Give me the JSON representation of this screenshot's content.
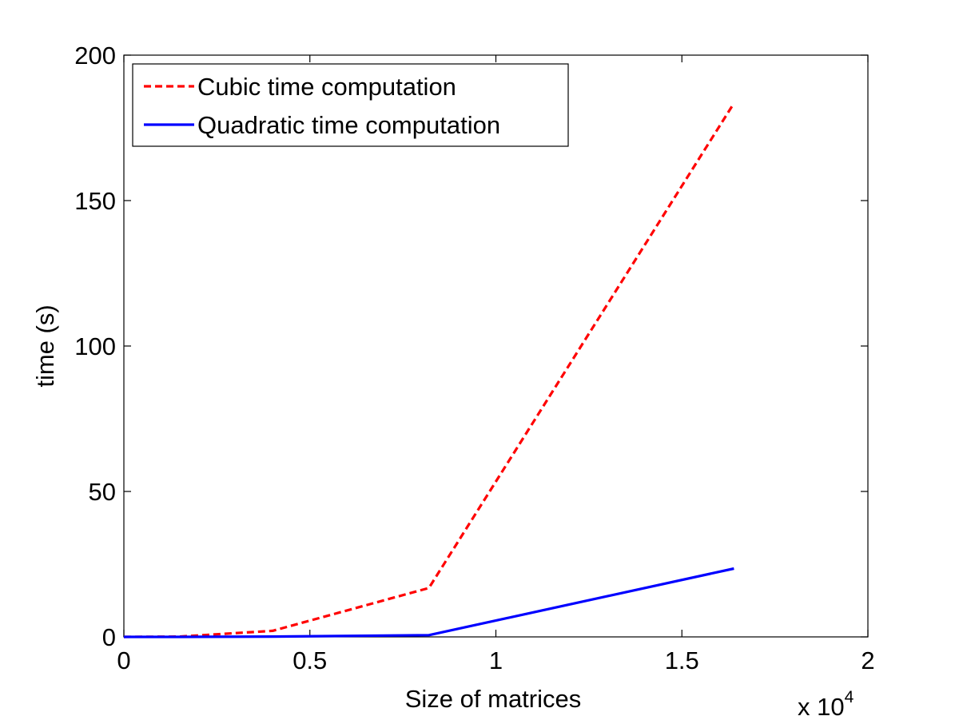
{
  "chart_data": {
    "type": "line",
    "title": "",
    "xlabel": "Size of matrices",
    "ylabel": "time (s)",
    "x_multiplier": {
      "base": "x 10",
      "exponent": "4"
    },
    "xlim": [
      0,
      2
    ],
    "ylim": [
      0,
      200
    ],
    "xticks": [
      "0",
      "0.5",
      "1",
      "1.5",
      "2"
    ],
    "yticks": [
      "0",
      "50",
      "100",
      "150",
      "200"
    ],
    "grid": false,
    "legend_position": "top-left",
    "series": [
      {
        "name": "Cubic time computation",
        "color": "#ff0000",
        "style": "dashed",
        "x": [
          0,
          0.15,
          0.4,
          0.82,
          1.64
        ],
        "y": [
          0,
          0.1,
          2.1,
          16.8,
          183.5
        ]
      },
      {
        "name": "Quadratic time computation",
        "color": "#0000ff",
        "style": "solid",
        "x": [
          0,
          0.15,
          0.4,
          0.82,
          1.64
        ],
        "y": [
          0,
          0,
          0.1,
          0.6,
          23.5
        ]
      }
    ]
  }
}
